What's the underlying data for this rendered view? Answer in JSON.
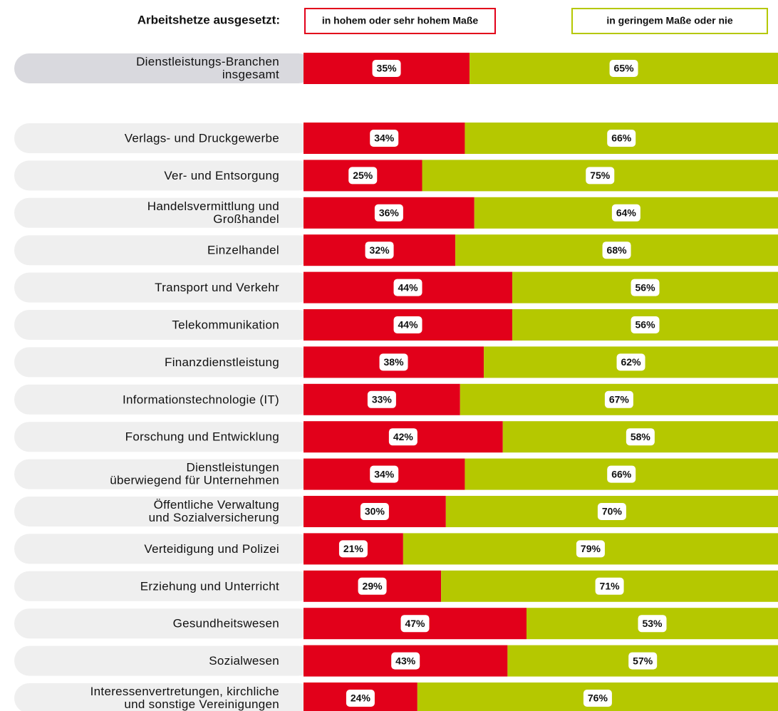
{
  "chart_data": {
    "type": "stacked_bar_h",
    "title": "Arbeitshetze ausgesetzt:",
    "categories": [
      "Dienstleistungs-Branchen\ninsgesamt",
      "Verlags- und Druckgewerbe",
      "Ver- und Entsorgung",
      "Handelsvermittlung und\nGroßhandel",
      "Einzelhandel",
      "Transport und Verkehr",
      "Telekommunikation",
      "Finanzdienstleistung",
      "Informationstechnologie (IT)",
      "Forschung und Entwicklung",
      "Dienstleistungen\nüberwiegend für Unternehmen",
      "Öffentliche Verwaltung\nund Sozialversicherung",
      "Verteidigung und Polizei",
      "Erziehung und Unterricht",
      "Gesundheitswesen",
      "Sozialwesen",
      "Interessenvertretungen, kirchliche\nund sonstige Vereinigungen"
    ],
    "series": [
      {
        "name": "in hohem oder sehr hohem Maße",
        "color": "#e2001a",
        "values": [
          35,
          34,
          25,
          36,
          32,
          44,
          44,
          38,
          33,
          42,
          34,
          30,
          21,
          29,
          47,
          43,
          24
        ],
        "value_labels": [
          "35%",
          "34%",
          "25%",
          "36%",
          "32%",
          "44%",
          "44%",
          "38%",
          "33%",
          "42%",
          "34%",
          "30%",
          "21%",
          "29%",
          "47%",
          "43%",
          "24%"
        ]
      },
      {
        "name": "in geringem Maße oder nie",
        "color": "#b5c800",
        "values": [
          65,
          66,
          75,
          64,
          68,
          56,
          56,
          62,
          67,
          58,
          66,
          70,
          79,
          71,
          53,
          57,
          76
        ],
        "value_labels": [
          "65%",
          "66%",
          "75%",
          "64%",
          "68%",
          "56%",
          "56%",
          "62%",
          "67%",
          "58%",
          "66%",
          "70%",
          "79%",
          "71%",
          "53%",
          "57%",
          "76%"
        ]
      }
    ]
  }
}
